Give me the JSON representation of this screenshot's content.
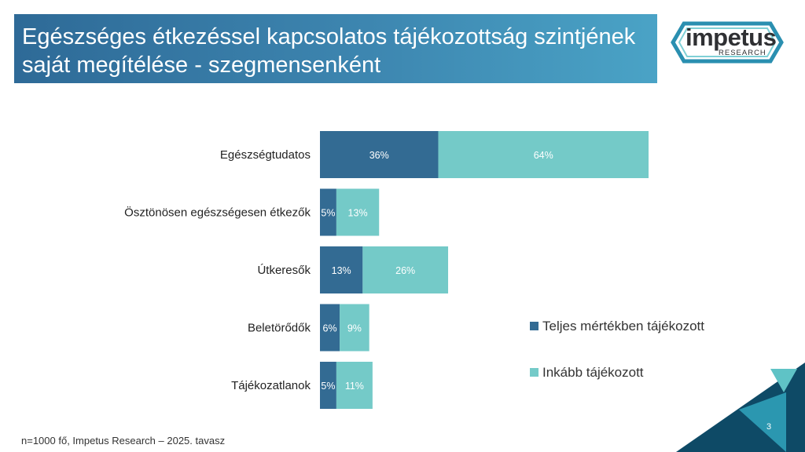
{
  "slide": {
    "title_line1": "Egészséges étkezéssel kapcsolatos tájékozottság szintjének",
    "title_line2": "saját megítélése - szegmensenként",
    "footnote": "n=1000 fő, Impetus Research – 2025. tavasz",
    "page_number": "3"
  },
  "logo": {
    "word": "impetus",
    "sub": "RESEARCH"
  },
  "colors": {
    "title_bar": "#3b82ad",
    "series_dark": "#336b93",
    "series_light": "#74cac8",
    "deco_dark": "#0e4a66",
    "deco_teal": "#2b97b0"
  },
  "chart_data": {
    "type": "bar",
    "orientation": "horizontal",
    "stacked": true,
    "categories": [
      "Egészségtudatos",
      "Ösztönösen egészségesen étkezők",
      "Útkeresők",
      "Beletörődők",
      "Tájékozatlanok"
    ],
    "series": [
      {
        "name": "Teljes mértékben tájékozott",
        "values": [
          36,
          5,
          13,
          6,
          5
        ],
        "labels": [
          "36%",
          "5%",
          "13%",
          "6%",
          "5%"
        ],
        "color": "#336b93"
      },
      {
        "name": "Inkább tájékozott",
        "values": [
          64,
          13,
          26,
          9,
          11
        ],
        "labels": [
          "64%",
          "13%",
          "26%",
          "9%",
          "11%"
        ],
        "color": "#74cac8"
      }
    ],
    "xlim": [
      0,
      100
    ],
    "grid": false,
    "legend_position": "right"
  }
}
